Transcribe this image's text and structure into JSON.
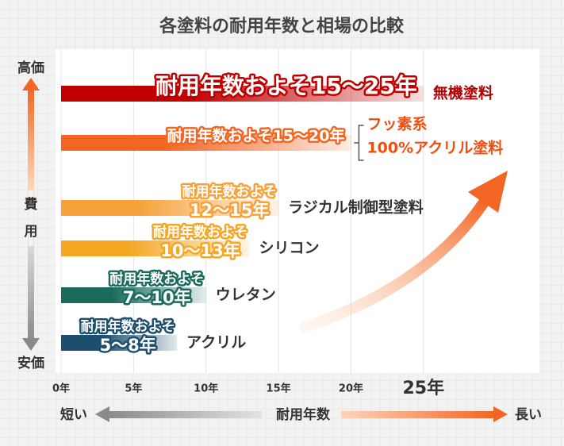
{
  "chart_data": {
    "type": "bar",
    "orientation": "horizontal",
    "title": "各塗料の耐用年数と相場の比較",
    "categories": [
      [
        "無機塗料"
      ],
      [
        "フッ素系",
        "100%アクリル塗料"
      ],
      [
        "ラジカル制御型塗料"
      ],
      [
        "シリコン"
      ],
      [
        "ウレタン"
      ],
      [
        "アクリル"
      ]
    ],
    "values": [
      25,
      20,
      15,
      13,
      10,
      8
    ],
    "value_labels": [
      [
        "耐用年数およそ15〜25年"
      ],
      [
        "耐用年数およそ15〜20年"
      ],
      [
        "耐用年数およそ",
        "12〜15年"
      ],
      [
        "耐用年数およそ",
        "10〜13年"
      ],
      [
        "耐用年数およそ",
        "7〜10年"
      ],
      [
        "耐用年数およそ",
        "5〜8年"
      ]
    ],
    "colors": [
      "#c00000",
      "#f26522",
      "#f7a13a",
      "#f5a623",
      "#1b6b5c",
      "#1d4e6e"
    ],
    "label_colors": [
      "#b30000",
      "#f04e0f",
      "#333333",
      "#333333",
      "#333333",
      "#333333"
    ],
    "xlim": [
      0,
      33
    ],
    "xticks": [
      {
        "value": 0,
        "label": "0年"
      },
      {
        "value": 5,
        "label": "5年"
      },
      {
        "value": 10,
        "label": "10年"
      },
      {
        "value": 15,
        "label": "15年"
      },
      {
        "value": 20,
        "label": "20年"
      },
      {
        "value": 25,
        "label": "25年"
      }
    ],
    "grid": true,
    "y_axis": {
      "top": "高価",
      "middle": [
        "費",
        "用"
      ],
      "bottom": "安価"
    },
    "x_axis": {
      "left": "短い",
      "middle": "耐用年数",
      "right": "長い"
    }
  }
}
